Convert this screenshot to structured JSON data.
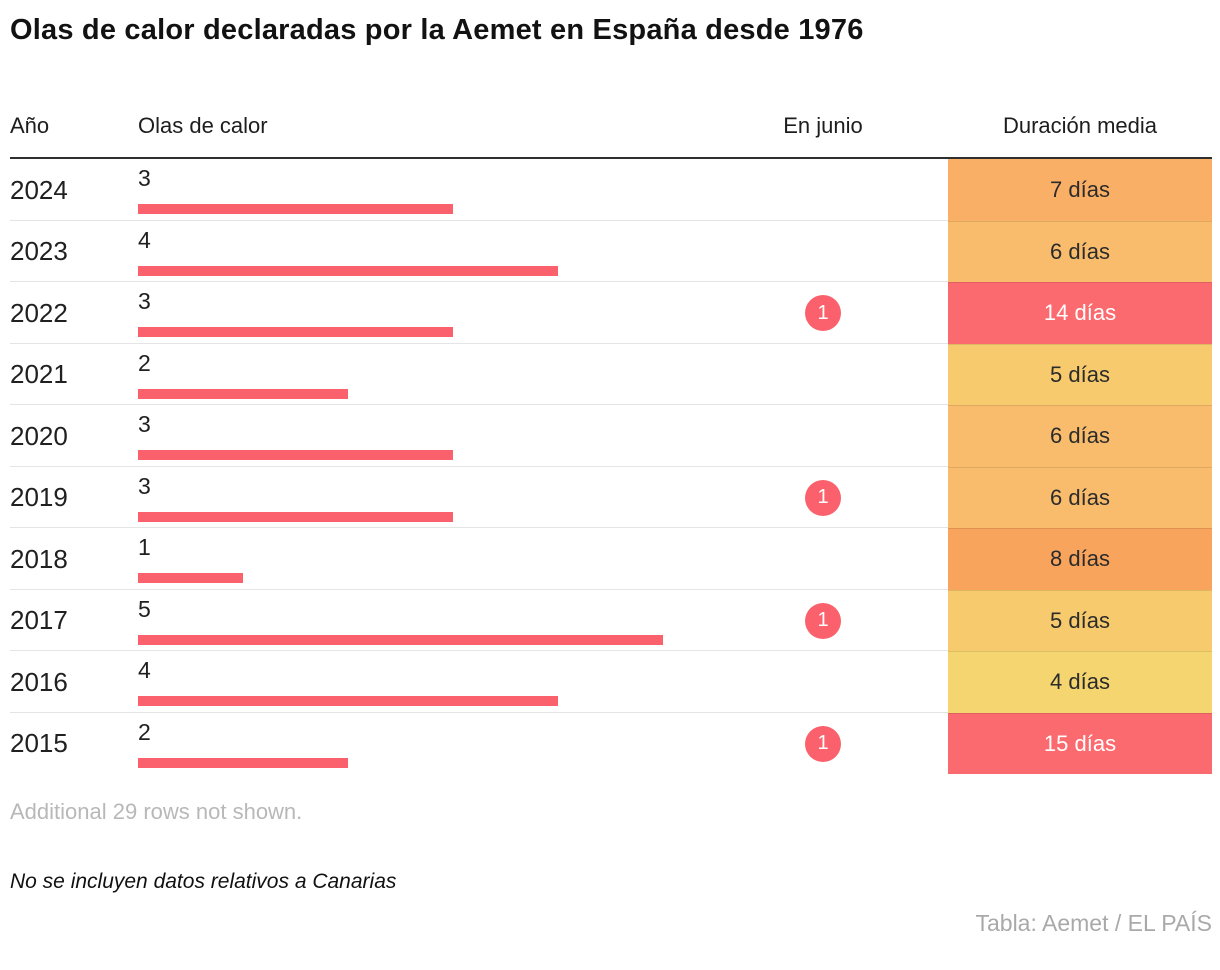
{
  "title": "Olas de calor declaradas por la Aemet en España desde 1976",
  "columns": {
    "year": "Año",
    "waves": "Olas de calor",
    "june": "En junio",
    "duration": "Duración media"
  },
  "rows": [
    {
      "year": "2024",
      "waves": 3,
      "june": null,
      "duration": "7 días",
      "duration_bg": "#FAAF66",
      "duration_fg": "#2B2B2B"
    },
    {
      "year": "2023",
      "waves": 4,
      "june": null,
      "duration": "6 días",
      "duration_bg": "#F9BC6D",
      "duration_fg": "#2B2B2B"
    },
    {
      "year": "2022",
      "waves": 3,
      "june": 1,
      "duration": "14 días",
      "duration_bg": "#FB6A6E",
      "duration_fg": "#FFFFFF"
    },
    {
      "year": "2021",
      "waves": 2,
      "june": null,
      "duration": "5 días",
      "duration_bg": "#F7CB6D",
      "duration_fg": "#2B2B2B"
    },
    {
      "year": "2020",
      "waves": 3,
      "june": null,
      "duration": "6 días",
      "duration_bg": "#F9BC6D",
      "duration_fg": "#2B2B2B"
    },
    {
      "year": "2019",
      "waves": 3,
      "june": 1,
      "duration": "6 días",
      "duration_bg": "#F9BC6D",
      "duration_fg": "#2B2B2B"
    },
    {
      "year": "2018",
      "waves": 1,
      "june": null,
      "duration": "8 días",
      "duration_bg": "#F9A45C",
      "duration_fg": "#2B2B2B"
    },
    {
      "year": "2017",
      "waves": 5,
      "june": 1,
      "duration": "5 días",
      "duration_bg": "#F7CB6D",
      "duration_fg": "#2B2B2B"
    },
    {
      "year": "2016",
      "waves": 4,
      "june": null,
      "duration": "4 días",
      "duration_bg": "#F4D56F",
      "duration_fg": "#2B2B2B"
    },
    {
      "year": "2015",
      "waves": 2,
      "june": 1,
      "duration": "15 días",
      "duration_bg": "#FB6A6E",
      "duration_fg": "#FFFFFF"
    }
  ],
  "colors": {
    "bar": "#FB616C",
    "badge": "#FB616C",
    "header_rule": "#2F2F2F",
    "row_separator": "#E4E4E4"
  },
  "footer": {
    "truncation_note": "Additional 29 rows not shown.",
    "data_note": "No se incluyen datos relativos a Canarias",
    "credit": "Tabla: Aemet / EL PAÍS"
  },
  "chart_data": {
    "type": "table",
    "title": "Olas de calor declaradas por la Aemet en España desde 1976",
    "columns": [
      "Año",
      "Olas de calor",
      "En junio",
      "Duración media"
    ],
    "rows": [
      {
        "ano": 2024,
        "olas_de_calor": 3,
        "en_junio": null,
        "duracion_media_dias": 7
      },
      {
        "ano": 2023,
        "olas_de_calor": 4,
        "en_junio": null,
        "duracion_media_dias": 6
      },
      {
        "ano": 2022,
        "olas_de_calor": 3,
        "en_junio": 1,
        "duracion_media_dias": 14
      },
      {
        "ano": 2021,
        "olas_de_calor": 2,
        "en_junio": null,
        "duracion_media_dias": 5
      },
      {
        "ano": 2020,
        "olas_de_calor": 3,
        "en_junio": null,
        "duracion_media_dias": 6
      },
      {
        "ano": 2019,
        "olas_de_calor": 3,
        "en_junio": 1,
        "duracion_media_dias": 6
      },
      {
        "ano": 2018,
        "olas_de_calor": 1,
        "en_junio": null,
        "duracion_media_dias": 8
      },
      {
        "ano": 2017,
        "olas_de_calor": 5,
        "en_junio": 1,
        "duracion_media_dias": 5
      },
      {
        "ano": 2016,
        "olas_de_calor": 4,
        "en_junio": null,
        "duracion_media_dias": 4
      },
      {
        "ano": 2015,
        "olas_de_calor": 2,
        "en_junio": 1,
        "duracion_media_dias": 15
      }
    ],
    "embedded_bars": {
      "type": "bar",
      "orientation": "horizontal",
      "series_label": "Olas de calor",
      "x": [
        2024,
        2023,
        2022,
        2021,
        2020,
        2019,
        2018,
        2017,
        2016,
        2015
      ],
      "values": [
        3,
        4,
        3,
        2,
        3,
        3,
        1,
        5,
        4,
        2
      ],
      "scale_max": 5
    },
    "duration_color_scale": "yellow (4 días) → orange (8 días) → red (14–15 días)",
    "truncation": "Additional 29 rows not shown."
  }
}
